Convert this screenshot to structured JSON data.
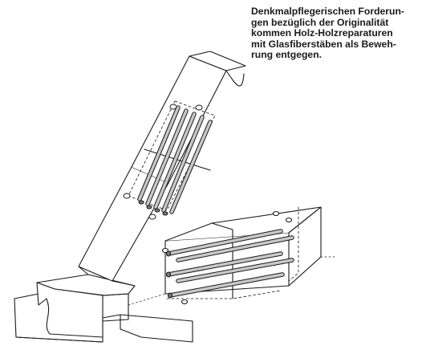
{
  "caption": {
    "lines": [
      "Denkmalpflegerischen Forderun-",
      "gen bezüglich der Originalität",
      "kommen Holz-Holzreparaturen",
      "mit Glasfiberstäben als Beweh-",
      "rung entgegen."
    ]
  },
  "colors": {
    "ink": "#1a1a1a",
    "paper": "#ffffff",
    "rod_fill": "#c8c8c8",
    "end_fill": "#7a7a7a"
  },
  "icons": {
    "illustration": "timber-joint-repair-with-glass-fiber-rods"
  }
}
